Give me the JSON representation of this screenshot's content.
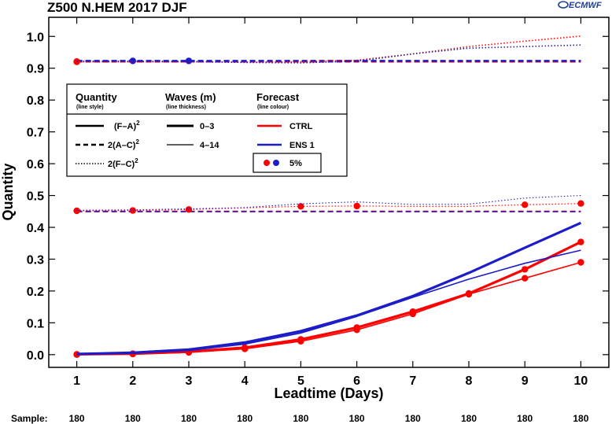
{
  "header": {
    "title": "Z500 N.HEM 2017 DJF",
    "logo_text": "ECMWF"
  },
  "chart_data": {
    "type": "line",
    "title": "Z500 N.HEM 2017 DJF",
    "xlabel": "Leadtime (Days)",
    "ylabel": "Quantity",
    "xlim": [
      0.5,
      10.5
    ],
    "ylim": [
      -0.04,
      1.06
    ],
    "x": [
      1,
      2,
      3,
      4,
      5,
      6,
      7,
      8,
      9,
      10
    ],
    "xticks": [
      "1",
      "2",
      "3",
      "4",
      "5",
      "6",
      "7",
      "8",
      "9",
      "10"
    ],
    "yticks": [
      {
        "value": 0.0,
        "label": "0.0"
      },
      {
        "value": 0.1,
        "label": "0.1"
      },
      {
        "value": 0.2,
        "label": "0.2"
      },
      {
        "value": 0.3,
        "label": "0.3"
      },
      {
        "value": 0.4,
        "label": "0.4"
      },
      {
        "value": 0.5,
        "label": "0.5"
      },
      {
        "value": 0.6,
        "label": "0.6"
      },
      {
        "value": 0.7,
        "label": "0.7"
      },
      {
        "value": 0.8,
        "label": "0.8"
      },
      {
        "value": 0.9,
        "label": "0.9"
      },
      {
        "value": 1.0,
        "label": "1.0"
      }
    ],
    "grid": false,
    "colors": {
      "CTRL": "#ff0000",
      "ENS 1": "#1c1cc8"
    },
    "series": [
      {
        "forecast": "CTRL",
        "quantity": "(F-A)^2",
        "waves": "0-3",
        "values": [
          0.001,
          0.003,
          0.009,
          0.022,
          0.048,
          0.085,
          0.135,
          0.192,
          0.268,
          0.354
        ],
        "markers": [
          true,
          true,
          true,
          true,
          true,
          true,
          true,
          true,
          true,
          true
        ]
      },
      {
        "forecast": "CTRL",
        "quantity": "(F-A)^2",
        "waves": "4-14",
        "values": [
          0.0,
          0.002,
          0.007,
          0.018,
          0.042,
          0.078,
          0.128,
          0.19,
          0.24,
          0.29
        ],
        "markers": [
          true,
          true,
          true,
          true,
          true,
          true,
          true,
          true,
          true,
          true
        ]
      },
      {
        "forecast": "ENS 1",
        "quantity": "(F-A)^2",
        "waves": "0-3",
        "values": [
          0.002,
          0.006,
          0.016,
          0.038,
          0.074,
          0.123,
          0.184,
          0.257,
          0.336,
          0.414
        ],
        "markers": [
          false,
          false,
          false,
          false,
          false,
          false,
          false,
          false,
          false,
          false
        ]
      },
      {
        "forecast": "ENS 1",
        "quantity": "(F-A)^2",
        "waves": "4-14",
        "values": [
          0.001,
          0.004,
          0.013,
          0.033,
          0.068,
          0.12,
          0.18,
          0.237,
          0.287,
          0.328
        ],
        "markers": [
          false,
          false,
          false,
          false,
          false,
          false,
          false,
          false,
          false,
          false
        ]
      },
      {
        "forecast": "CTRL",
        "quantity": "2(A-C)^2",
        "waves": "0-3",
        "values": [
          0.921,
          0.921,
          0.921,
          0.921,
          0.921,
          0.921,
          0.921,
          0.921,
          0.921,
          0.921
        ],
        "markers": [
          true,
          false,
          false,
          false,
          false,
          false,
          false,
          false,
          false,
          false
        ]
      },
      {
        "forecast": "ENS 1",
        "quantity": "2(A-C)^2",
        "waves": "0-3",
        "values": [
          0.923,
          0.923,
          0.923,
          0.923,
          0.923,
          0.923,
          0.923,
          0.923,
          0.923,
          0.923
        ],
        "markers": [
          false,
          true,
          true,
          false,
          false,
          false,
          false,
          false,
          false,
          false
        ]
      },
      {
        "forecast": "CTRL",
        "quantity": "2(A-C)^2",
        "waves": "4-14",
        "values": [
          0.451,
          0.451,
          0.451,
          0.451,
          0.451,
          0.451,
          0.451,
          0.451,
          0.451,
          0.451
        ],
        "markers": [
          false,
          false,
          false,
          false,
          false,
          false,
          false,
          false,
          false,
          false
        ]
      },
      {
        "forecast": "ENS 1",
        "quantity": "2(A-C)^2",
        "waves": "4-14",
        "values": [
          0.449,
          0.449,
          0.449,
          0.449,
          0.449,
          0.449,
          0.449,
          0.449,
          0.449,
          0.449
        ],
        "markers": [
          false,
          false,
          false,
          false,
          false,
          false,
          false,
          false,
          false,
          false
        ]
      },
      {
        "forecast": "CTRL",
        "quantity": "2(F-C)^2",
        "waves": "0-3",
        "values": [
          0.92,
          0.92,
          0.92,
          0.919,
          0.92,
          0.925,
          0.945,
          0.968,
          0.985,
          1.001
        ],
        "markers": [
          true,
          false,
          false,
          false,
          false,
          false,
          false,
          false,
          false,
          false
        ]
      },
      {
        "forecast": "ENS 1",
        "quantity": "2(F-C)^2",
        "waves": "0-3",
        "values": [
          0.922,
          0.922,
          0.921,
          0.918,
          0.917,
          0.922,
          0.945,
          0.963,
          0.968,
          0.973
        ],
        "markers": [
          false,
          false,
          false,
          false,
          false,
          false,
          false,
          false,
          false,
          false
        ]
      },
      {
        "forecast": "CTRL",
        "quantity": "2(F-C)^2",
        "waves": "4-14",
        "values": [
          0.452,
          0.453,
          0.456,
          0.461,
          0.466,
          0.467,
          0.466,
          0.466,
          0.471,
          0.475
        ],
        "markers": [
          true,
          true,
          true,
          false,
          true,
          true,
          false,
          false,
          true,
          true
        ]
      },
      {
        "forecast": "ENS 1",
        "quantity": "2(F-C)^2",
        "waves": "4-14",
        "values": [
          0.454,
          0.455,
          0.458,
          0.462,
          0.474,
          0.48,
          0.472,
          0.473,
          0.492,
          0.5
        ],
        "markers": [
          false,
          false,
          false,
          false,
          false,
          false,
          false,
          false,
          false,
          false
        ]
      }
    ],
    "legend": {
      "placement": "top-left",
      "quantity_heading": "Quantity",
      "quantity_sub": "(line style)",
      "waves_heading": "Waves (m)",
      "waves_sub": "(line thickness)",
      "forecast_heading": "Forecast",
      "forecast_sub": "(line colour)",
      "quantity_items": [
        {
          "label": "(F–A)",
          "sup": "2",
          "style": "solid"
        },
        {
          "label": "2(A–C)",
          "sup": "2",
          "style": "dashed"
        },
        {
          "label": "2(F–C)",
          "sup": "2",
          "style": "dotted"
        }
      ],
      "waves_items": [
        {
          "label": "0–3",
          "thickness": "thick"
        },
        {
          "label": "4–14",
          "thickness": "thin"
        }
      ],
      "forecast_items": [
        {
          "label": "CTRL",
          "color": "#ff0000"
        },
        {
          "label": "ENS 1",
          "color": "#1c1cc8"
        }
      ],
      "significance_label": "5%"
    },
    "sample_label": "Sample:",
    "samples": [
      "180",
      "180",
      "180",
      "180",
      "180",
      "180",
      "180",
      "180",
      "180",
      "180"
    ]
  }
}
